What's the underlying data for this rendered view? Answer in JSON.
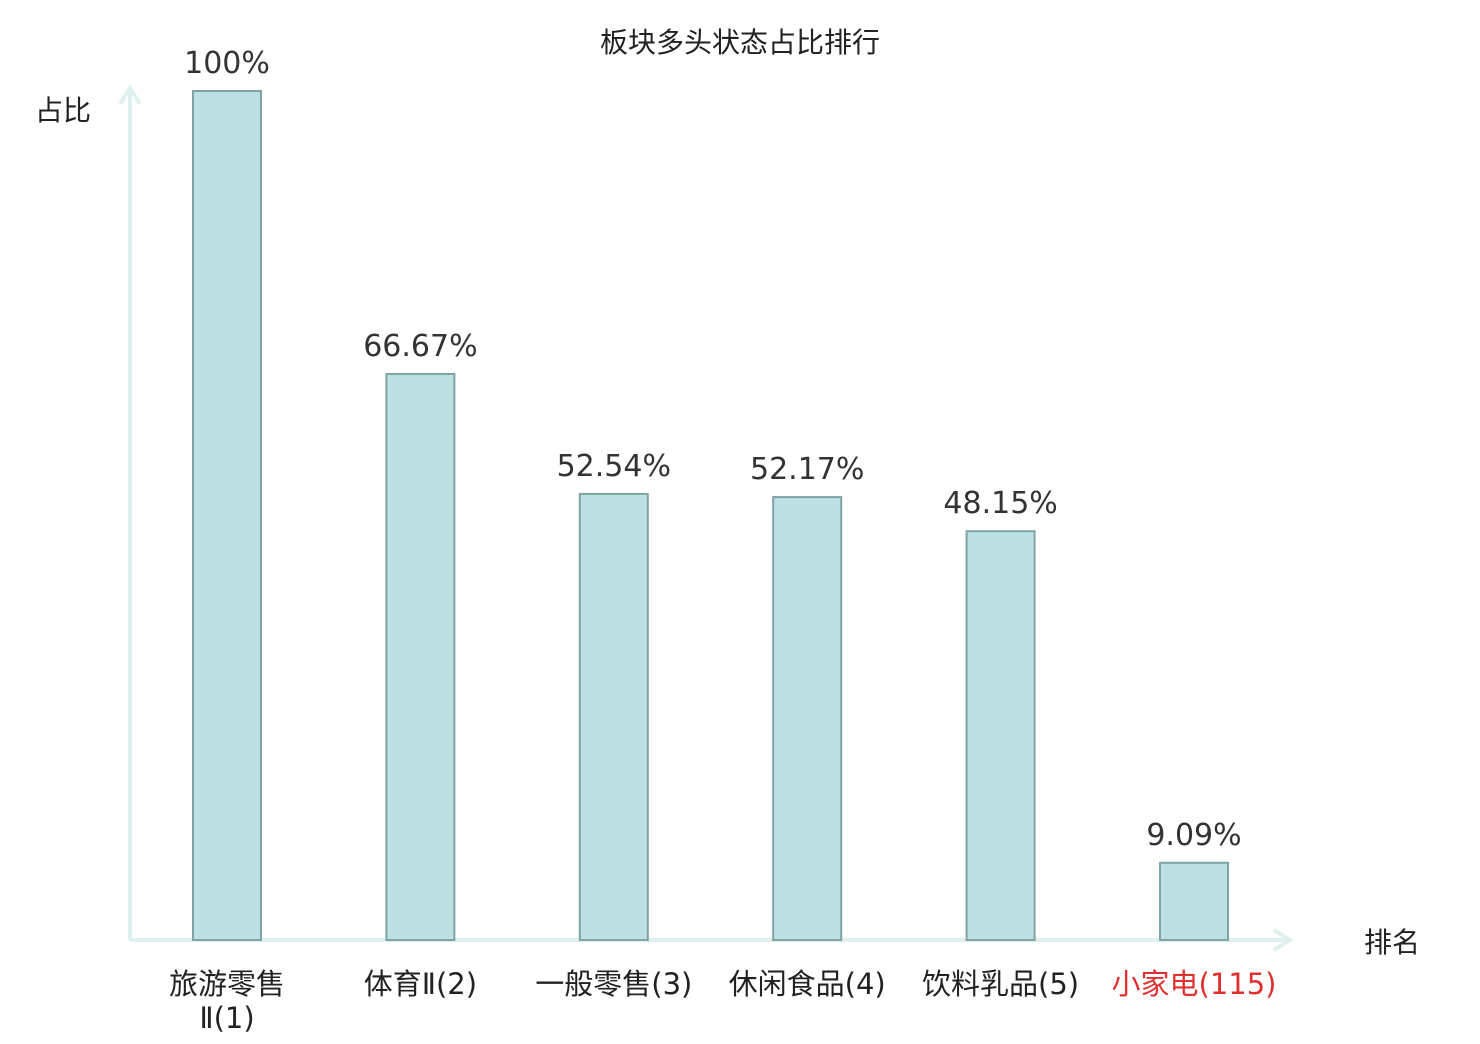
{
  "chart_data": {
    "type": "bar",
    "title": "板块多头状态占比排行",
    "ylabel": "占比",
    "xlabel": "排名",
    "ylim": [
      0,
      100
    ],
    "categories": [
      [
        "旅游零售",
        "Ⅱ(1)"
      ],
      [
        "体育Ⅱ(2)"
      ],
      [
        "一般零售(3)"
      ],
      [
        "休闲食品(4)"
      ],
      [
        "饮料乳品(5)"
      ],
      [
        "小家电(115)"
      ]
    ],
    "values": [
      100,
      66.67,
      52.54,
      52.17,
      48.15,
      9.09
    ],
    "value_labels": [
      "100%",
      "66.67%",
      "52.54%",
      "52.17%",
      "48.15%",
      "9.09%"
    ],
    "highlight_index": 5,
    "grid": false,
    "colors": {
      "bar_fill": "#bde0e3",
      "bar_stroke": "#7fa4a6",
      "axis": "#dff1ef",
      "text": "#333333",
      "category_text": "#222222",
      "highlight_text": "#e03030"
    }
  }
}
